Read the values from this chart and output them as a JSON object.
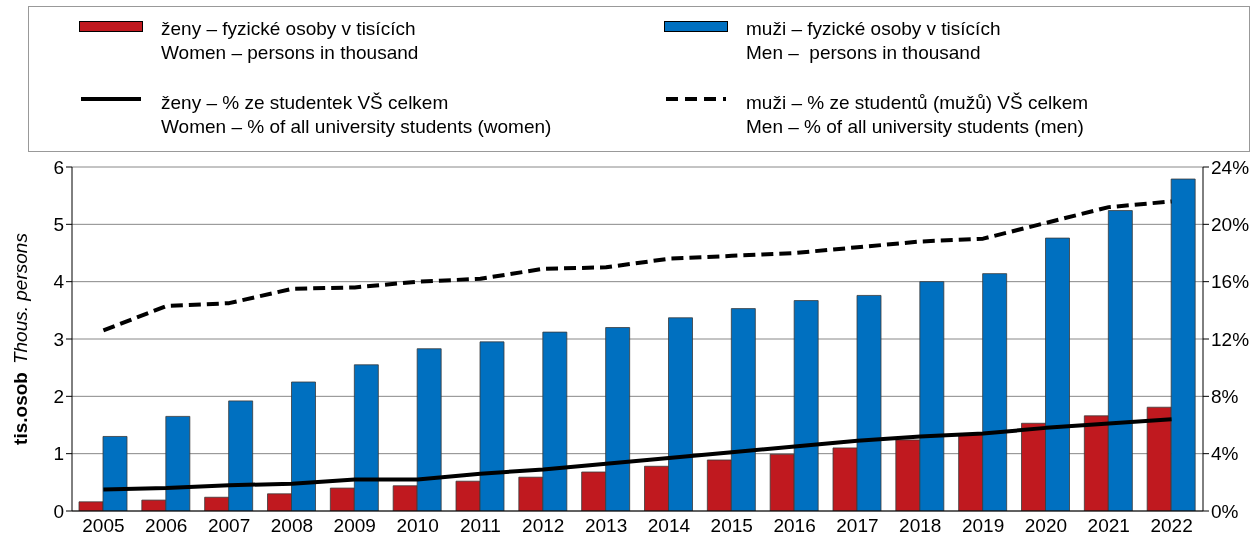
{
  "chart_data": {
    "type": "bar",
    "ylabel": "tis.osob\nThous. persons",
    "categories": [
      "2005",
      "2006",
      "2007",
      "2008",
      "2009",
      "2010",
      "2011",
      "2012",
      "2013",
      "2014",
      "2015",
      "2016",
      "2017",
      "2018",
      "2019",
      "2020",
      "2021",
      "2022"
    ],
    "series": [
      {
        "name": "ženy – fyzické osoby v tisících\nWomen – persons in thousand",
        "color": "#c0191f",
        "values": [
          0.16,
          0.19,
          0.24,
          0.3,
          0.4,
          0.44,
          0.52,
          0.59,
          0.68,
          0.78,
          0.89,
          0.99,
          1.1,
          1.24,
          1.34,
          1.53,
          1.66,
          1.81
        ]
      },
      {
        "name": "muži – fyzické osoby v tisících\nMen –  persons in thousand",
        "color": "#0070c0",
        "values": [
          1.3,
          1.65,
          1.92,
          2.25,
          2.55,
          2.83,
          2.95,
          3.12,
          3.2,
          3.37,
          3.53,
          3.67,
          3.76,
          4.0,
          4.14,
          4.76,
          5.24,
          5.79
        ]
      },
      {
        "name": "ženy – % ze studentek VŠ celkem\nWomen – % of all university students (women)",
        "type": "line",
        "axis": "y2",
        "line_style": "solid",
        "color": "#000000",
        "values": [
          1.5,
          1.6,
          1.8,
          1.9,
          2.2,
          2.2,
          2.6,
          2.9,
          3.3,
          3.7,
          4.1,
          4.5,
          4.9,
          5.2,
          5.4,
          5.8,
          6.1,
          6.4
        ]
      },
      {
        "name": "muži – % ze studentů (mužů) VŠ celkem\nMen – % of all university students (men)",
        "type": "line",
        "axis": "y2",
        "line_style": "dashed",
        "color": "#000000",
        "values": [
          12.6,
          14.3,
          14.5,
          15.5,
          15.6,
          16.0,
          16.2,
          16.9,
          17.0,
          17.6,
          17.8,
          18.0,
          18.4,
          18.8,
          19.0,
          20.1,
          21.2,
          21.6
        ]
      }
    ],
    "ylim": [
      0,
      6
    ],
    "yticks": [
      0,
      1,
      2,
      3,
      4,
      5,
      6
    ],
    "y2lim": [
      0,
      24
    ],
    "y2ticks": [
      {
        "value": 0,
        "label": "0%"
      },
      {
        "value": 4,
        "label": "4%"
      },
      {
        "value": 8,
        "label": "8%"
      },
      {
        "value": 12,
        "label": "12%"
      },
      {
        "value": 16,
        "label": "16%"
      },
      {
        "value": 20,
        "label": "20%"
      },
      {
        "value": 24,
        "label": "24%"
      }
    ],
    "grid": "y",
    "legend": "top",
    "marker": "none"
  }
}
